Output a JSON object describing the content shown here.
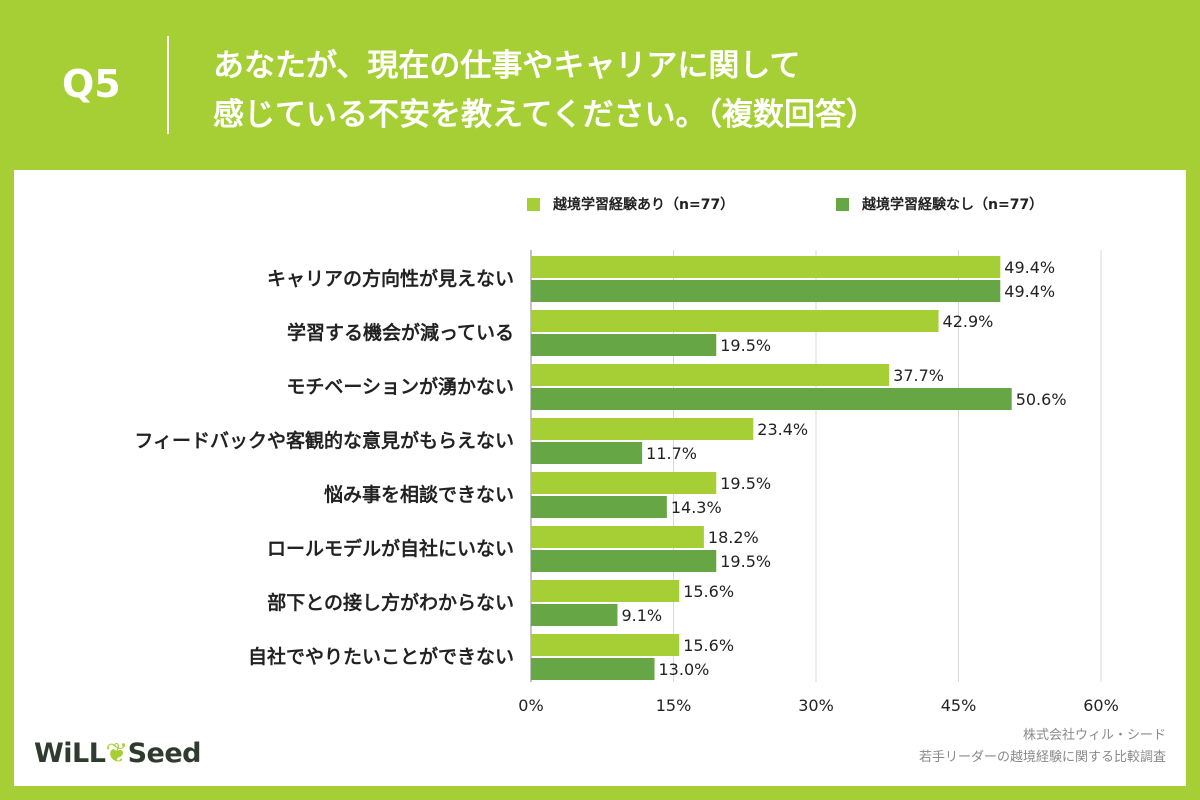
{
  "header": {
    "question": "Q5",
    "title_line1": "あなたが、現在の仕事やキャリアに関して",
    "title_line2": "感じている不安を教えてください。（複数回答）"
  },
  "colors": {
    "background": "#a6cf35",
    "series1": "#a6cf35",
    "series2": "#66a645"
  },
  "chart_data": {
    "type": "bar",
    "orientation": "horizontal",
    "categories": [
      "キャリアの方向性が見えない",
      "学習する機会が減っている",
      "モチベーションが湧かない",
      "フィードバックや客観的な意見がもらえない",
      "悩み事を相談できない",
      "ロールモデルが自社にいない",
      "部下との接し方がわからない",
      "自社でやりたいことができない"
    ],
    "series": [
      {
        "name": "越境学習経験あり（n=77）",
        "values": [
          49.4,
          42.9,
          37.7,
          23.4,
          19.5,
          18.2,
          15.6,
          15.6
        ]
      },
      {
        "name": "越境学習経験なし（n=77）",
        "values": [
          49.4,
          19.5,
          50.6,
          11.7,
          14.3,
          19.5,
          9.1,
          13.0
        ]
      }
    ],
    "value_suffix": "%",
    "xlim": [
      0,
      60
    ],
    "xticks": [
      "0%",
      "15%",
      "30%",
      "45%",
      "60%"
    ],
    "grid": true,
    "legend": "top"
  },
  "footer": {
    "logo_prefix": "WiLL",
    "logo_suffix": "Seed",
    "source_line1": "株式会社ウィル・シード",
    "source_line2": "若手リーダーの越境経験に関する比較調査"
  }
}
